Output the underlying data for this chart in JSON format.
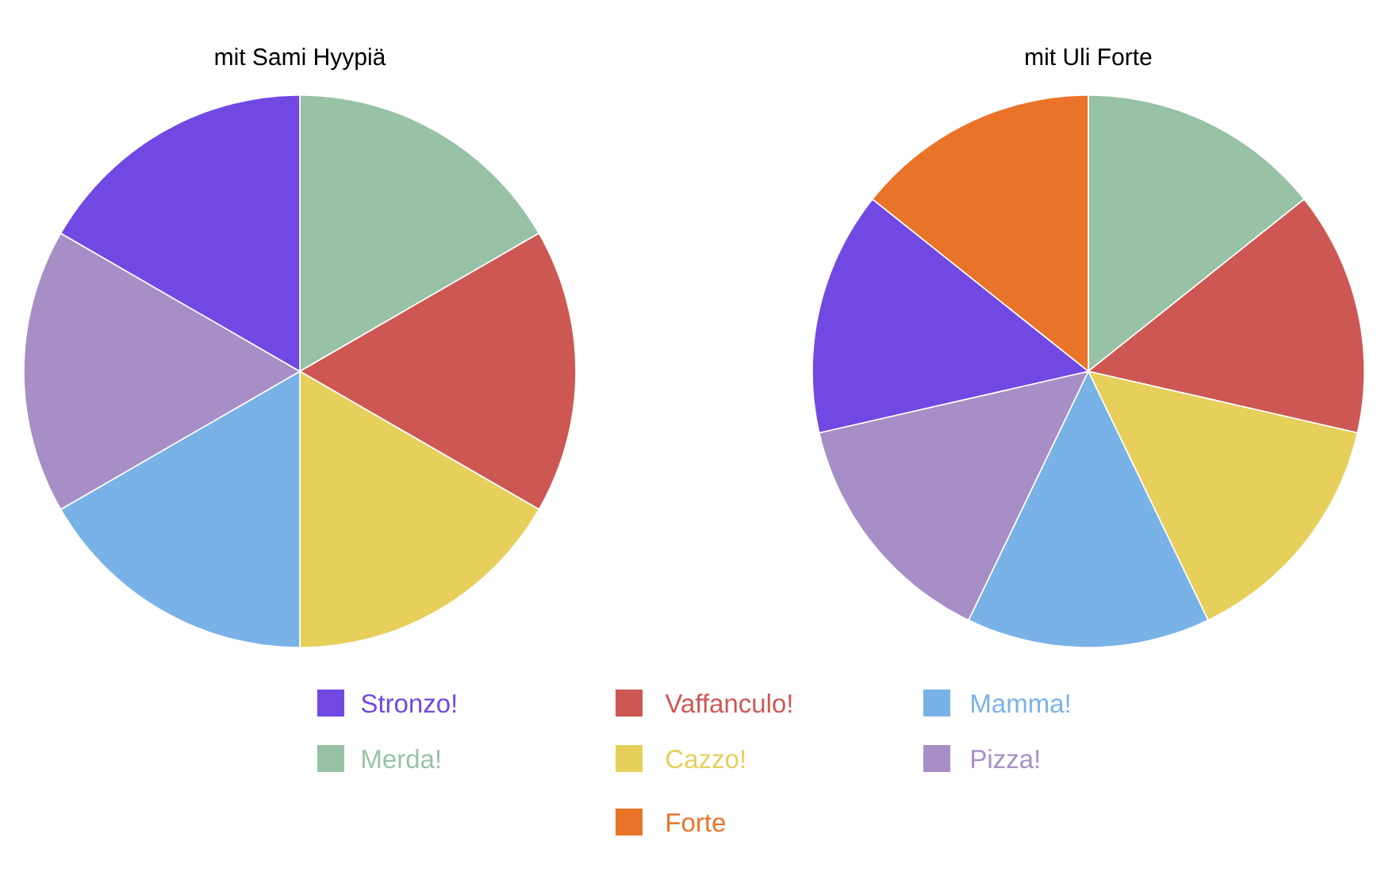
{
  "chart_data": {
    "type": "pie",
    "categories": [
      "Merda!",
      "Vaffanculo!",
      "Cazzo!",
      "Mamma!",
      "Pizza!",
      "Stronzo!",
      "Forte"
    ],
    "colors": [
      "#97c2a5",
      "#cd5853",
      "#e7cf5b",
      "#79b2e6",
      "#a88ec7",
      "#7149e2",
      "#e97429"
    ],
    "series": [
      {
        "name": "mit Sami Hyypiä",
        "values": [
          16.67,
          16.67,
          16.67,
          16.67,
          16.67,
          16.67,
          null
        ]
      },
      {
        "name": "mit Uli Forte",
        "values": [
          14.29,
          14.29,
          14.29,
          14.29,
          14.29,
          14.29,
          14.29
        ]
      }
    ],
    "legend": "bottom"
  }
}
